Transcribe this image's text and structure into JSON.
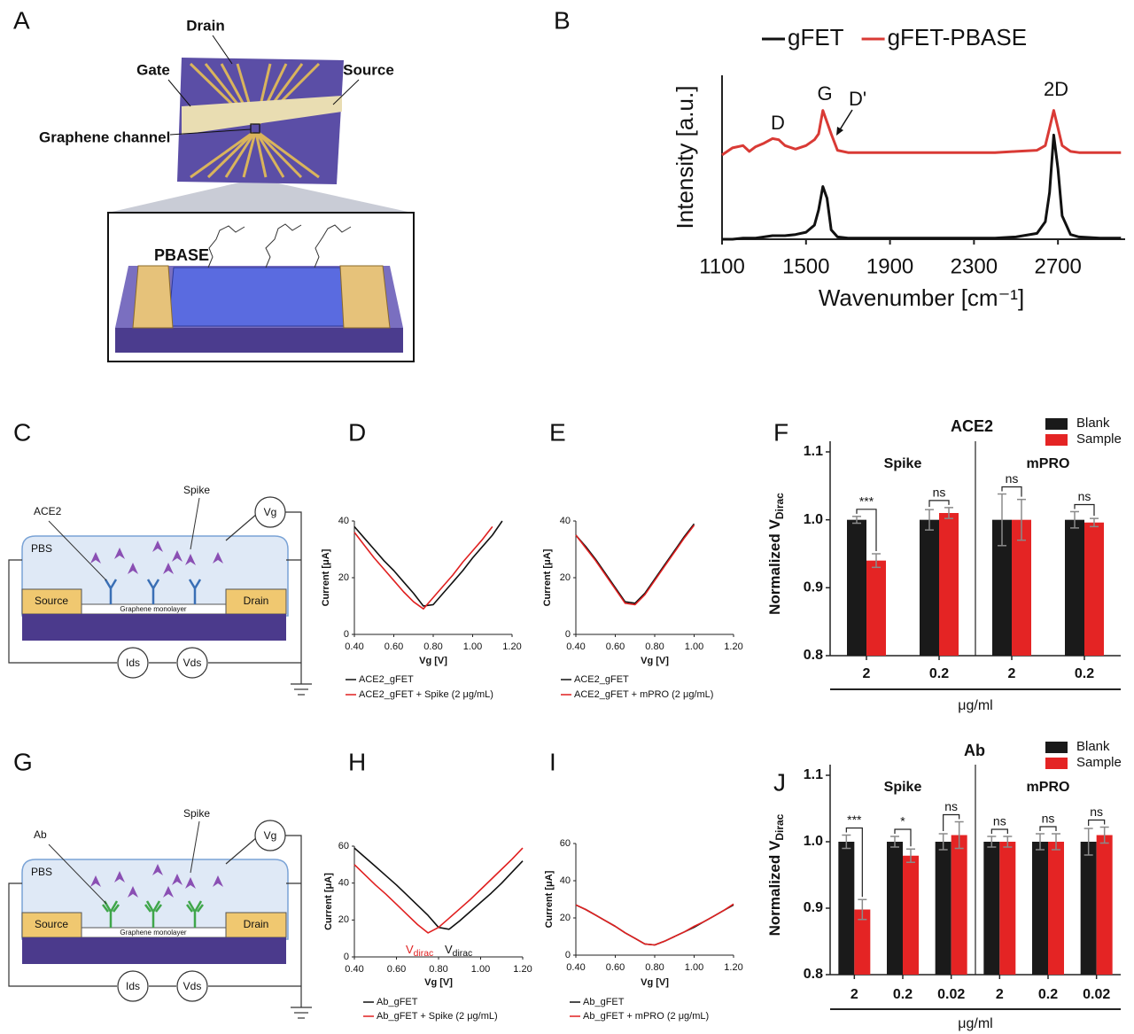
{
  "panels": [
    "A",
    "B",
    "C",
    "D",
    "E",
    "F",
    "G",
    "H",
    "I",
    "J"
  ],
  "diagram_a": {
    "drain": "Drain",
    "gate": "Gate",
    "source": "Source",
    "channel": "Graphene channel",
    "linker": "PBASE"
  },
  "diagram_c": {
    "receptor": "ACE2",
    "analyte": "Spike",
    "buffer": "PBS",
    "source": "Source",
    "drain": "Drain",
    "channel": "Graphene monolayer",
    "gate_voltage": "Vg",
    "current": "Ids",
    "bias": "Vds"
  },
  "diagram_g": {
    "receptor": "Ab",
    "analyte": "Spike",
    "buffer": "PBS",
    "source": "Source",
    "drain": "Drain",
    "channel": "Graphene monolayer",
    "gate_voltage": "Vg",
    "current": "Ids",
    "bias": "Vds"
  },
  "chart_data": [
    {
      "type": "line",
      "xlabel": "Wavenumber [cm⁻¹]",
      "ylabel": "Intensity [a.u.]",
      "legend": "top",
      "x": [
        1100,
        1150,
        1200,
        1230,
        1260,
        1300,
        1340,
        1370,
        1400,
        1450,
        1500,
        1540,
        1560,
        1580,
        1600,
        1620,
        1650,
        1700,
        1800,
        1900,
        2000,
        2100,
        2200,
        2300,
        2400,
        2500,
        2600,
        2640,
        2660,
        2680,
        2700,
        2720,
        2760,
        2800,
        2900,
        3000
      ],
      "series": [
        {
          "name": "gFET",
          "color": "#111111",
          "values": [
            0,
            0,
            0.01,
            0.01,
            0.01,
            0.02,
            0.03,
            0.03,
            0.03,
            0.04,
            0.06,
            0.12,
            0.25,
            0.45,
            0.35,
            0.08,
            0.02,
            0.01,
            0.01,
            0.01,
            0.01,
            0.01,
            0.01,
            0.01,
            0.01,
            0.02,
            0.05,
            0.15,
            0.4,
            0.89,
            0.6,
            0.2,
            0.04,
            0.02,
            0.01,
            0.01
          ]
        },
        {
          "name": "gFET-PBASE",
          "color": "#d93a35",
          "values": [
            0.72,
            0.78,
            0.8,
            0.75,
            0.79,
            0.82,
            0.86,
            0.85,
            0.8,
            0.77,
            0.8,
            0.85,
            0.9,
            1.1,
            1.0,
            0.9,
            0.76,
            0.74,
            0.74,
            0.74,
            0.74,
            0.74,
            0.74,
            0.74,
            0.74,
            0.75,
            0.76,
            0.8,
            0.95,
            1.1,
            0.95,
            0.8,
            0.75,
            0.74,
            0.74,
            0.74
          ]
        }
      ],
      "xlim": [
        1100,
        3020
      ],
      "xticks": [
        1100,
        1500,
        1900,
        2300,
        2700
      ],
      "ylim": [
        0,
        1.4
      ],
      "annotations": [
        "D",
        "G",
        "D'",
        "2D"
      ]
    },
    {
      "type": "line",
      "xlabel": "Vg [V]",
      "ylabel": "Current [μA]",
      "legend": "bottom",
      "x": [
        0.4,
        0.45,
        0.5,
        0.55,
        0.6,
        0.65,
        0.7,
        0.75,
        0.8,
        0.85,
        0.9,
        0.95,
        1,
        1.05,
        1.1,
        1.15
      ],
      "series": [
        {
          "name": "ACE2_gFET",
          "color": "#111111",
          "values": [
            38,
            34,
            30,
            26,
            22.5,
            18.5,
            14.5,
            10,
            10.5,
            14.5,
            18.5,
            22.5,
            27,
            31,
            35,
            40
          ]
        },
        {
          "name": "ACE2_gFET + Spike (2 μg/mL)",
          "color": "#e02020",
          "values": [
            36,
            31.5,
            27,
            23,
            19,
            15,
            11.5,
            9,
            13,
            17,
            21,
            25.5,
            29.5,
            33.5,
            38,
            null
          ]
        }
      ],
      "xlim": [
        0.4,
        1.2
      ],
      "xticks": [
        {
          "value": 0.4,
          "label": "0.40"
        },
        {
          "value": 0.6,
          "label": "0.60"
        },
        {
          "value": 0.8,
          "label": "0.80"
        },
        {
          "value": 1,
          "label": "1.00"
        },
        {
          "value": 1.2,
          "label": "1.20"
        }
      ],
      "ylim": [
        0,
        40
      ],
      "yticks": [
        0,
        20,
        40
      ]
    },
    {
      "type": "line",
      "xlabel": "Vg [V]",
      "ylabel": "Current [μA]",
      "legend": "bottom",
      "x": [
        0.4,
        0.45,
        0.5,
        0.55,
        0.6,
        0.65,
        0.7,
        0.75,
        0.8,
        0.85,
        0.9,
        0.95,
        1,
        1.05,
        1.1,
        1.15
      ],
      "series": [
        {
          "name": "ACE2_gFET",
          "color": "#111111",
          "values": [
            35,
            31,
            26.5,
            21.5,
            16.5,
            11.5,
            11,
            14.5,
            19.5,
            24.5,
            29.5,
            34.5,
            39,
            null,
            null,
            null
          ]
        },
        {
          "name": "ACE2_gFET + mPRO (2 μg/mL)",
          "color": "#e02020",
          "values": [
            35,
            30.5,
            26,
            21,
            16,
            11,
            10.5,
            14,
            19,
            24,
            29,
            34,
            38.5,
            null,
            null,
            null
          ]
        }
      ],
      "xlim": [
        0.4,
        1.2
      ],
      "xticks": [
        {
          "value": 0.4,
          "label": "0.40"
        },
        {
          "value": 0.6,
          "label": "0.60"
        },
        {
          "value": 0.8,
          "label": "0.80"
        },
        {
          "value": 1,
          "label": "1.00"
        },
        {
          "value": 1.2,
          "label": "1.20"
        }
      ],
      "ylim": [
        0,
        40
      ],
      "yticks": [
        0,
        20,
        40
      ]
    },
    {
      "type": "bar",
      "title": "ACE2",
      "xlabel": "μg/ml",
      "ylabel": "Normalized V",
      "ylabel_sub": "Dirac",
      "groups": [
        "Spike",
        "mPRO"
      ],
      "categories": [
        "2",
        "0.2",
        "2",
        "0.2"
      ],
      "series": [
        {
          "name": "Blank",
          "color": "#1a1a1a",
          "values": [
            1,
            1,
            1,
            1
          ],
          "errors": [
            0.005,
            0.015,
            0.038,
            0.012
          ]
        },
        {
          "name": "Sample",
          "color": "#e42424",
          "values": [
            0.94,
            1.01,
            1,
            0.996
          ],
          "errors": [
            0.01,
            0.008,
            0.03,
            0.006
          ]
        }
      ],
      "significance": [
        "***",
        "ns",
        "ns",
        "ns"
      ],
      "ylim": [
        0.8,
        1.1
      ],
      "yticks": [
        0.8,
        0.9,
        {
          "value": 1,
          "label": "1.0"
        },
        1.1
      ]
    },
    {
      "type": "line",
      "xlabel": "Vg [V]",
      "ylabel": "Current [μA]",
      "legend": "bottom",
      "x": [
        0.4,
        0.45,
        0.5,
        0.55,
        0.6,
        0.65,
        0.7,
        0.75,
        0.8,
        0.85,
        0.9,
        0.95,
        1,
        1.05,
        1.1,
        1.15,
        1.2
      ],
      "series": [
        {
          "name": "Ab_gFET",
          "color": "#111111",
          "values": [
            59,
            54,
            49,
            44,
            39,
            33.5,
            28,
            22.5,
            16,
            15,
            19.5,
            24.5,
            29.5,
            34.5,
            40,
            46,
            52
          ]
        },
        {
          "name": "Ab_gFET + Spike (2 μg/mL)",
          "color": "#e02020",
          "values": [
            50,
            44.5,
            39,
            34,
            28.5,
            23,
            17.5,
            13,
            16,
            21,
            26,
            31,
            36.5,
            42,
            47.5,
            53,
            59
          ]
        }
      ],
      "xlim": [
        0.4,
        1.2
      ],
      "xticks": [
        {
          "value": 0.4,
          "label": "0.40"
        },
        {
          "value": 0.6,
          "label": "0.60"
        },
        {
          "value": 0.8,
          "label": "0.80"
        },
        {
          "value": 1,
          "label": "1.00"
        },
        {
          "value": 1.2,
          "label": "1.20"
        }
      ],
      "ylim": [
        0,
        60
      ],
      "yticks": [
        0,
        20,
        40,
        60
      ],
      "annotations": [
        {
          "text": "V",
          "sub": "dirac",
          "color": "#e02020"
        },
        {
          "text": "V",
          "sub": "dirac",
          "color": "#111111"
        }
      ]
    },
    {
      "type": "line",
      "xlabel": "Vg [V]",
      "ylabel": "Current [μA]",
      "legend": "bottom",
      "x": [
        0.4,
        0.45,
        0.5,
        0.55,
        0.6,
        0.65,
        0.7,
        0.75,
        0.8,
        0.85,
        0.9,
        0.95,
        1,
        1.05,
        1.1,
        1.15,
        1.2
      ],
      "series": [
        {
          "name": "Ab_gFET",
          "color": "#111111",
          "values": [
            27,
            24.5,
            21.5,
            18.5,
            15.5,
            12,
            9,
            6,
            5.5,
            7.5,
            10,
            12.5,
            15,
            18,
            21,
            24,
            27
          ]
        },
        {
          "name": "Ab_gFET + mPRO (2 μg/mL)",
          "color": "#e02020",
          "values": [
            27,
            24.5,
            21.5,
            18.5,
            15.5,
            12,
            9,
            6,
            5.5,
            7.5,
            10,
            12.5,
            15.5,
            18,
            21,
            24,
            27.5
          ]
        }
      ],
      "xlim": [
        0.4,
        1.2
      ],
      "xticks": [
        {
          "value": 0.4,
          "label": "0.40"
        },
        {
          "value": 0.6,
          "label": "0.60"
        },
        {
          "value": 0.8,
          "label": "0.80"
        },
        {
          "value": 1,
          "label": "1.00"
        },
        {
          "value": 1.2,
          "label": "1.20"
        }
      ],
      "ylim": [
        0,
        60
      ],
      "yticks": [
        0,
        20,
        40,
        60
      ]
    },
    {
      "type": "bar",
      "title": "Ab",
      "xlabel": "μg/ml",
      "ylabel": "Normalized V",
      "ylabel_sub": "Dirac",
      "groups": [
        "Spike",
        "mPRO"
      ],
      "categories": [
        "2",
        "0.2",
        "0.02",
        "2",
        "0.2",
        "0.02"
      ],
      "series": [
        {
          "name": "Blank",
          "color": "#1a1a1a",
          "values": [
            1,
            1,
            1,
            1,
            1,
            1
          ],
          "errors": [
            0.01,
            0.008,
            0.012,
            0.008,
            0.012,
            0.02
          ]
        },
        {
          "name": "Sample",
          "color": "#e42424",
          "values": [
            0.898,
            0.979,
            1.01,
            1,
            1,
            1.01
          ],
          "errors": [
            0.015,
            0.01,
            0.02,
            0.008,
            0.012,
            0.012
          ]
        }
      ],
      "significance": [
        "***",
        "*",
        "ns",
        "ns",
        "ns",
        "ns"
      ],
      "ylim": [
        0.8,
        1.1
      ],
      "yticks": [
        0.8,
        0.9,
        {
          "value": 1,
          "label": "1.0"
        },
        1.1
      ]
    }
  ]
}
